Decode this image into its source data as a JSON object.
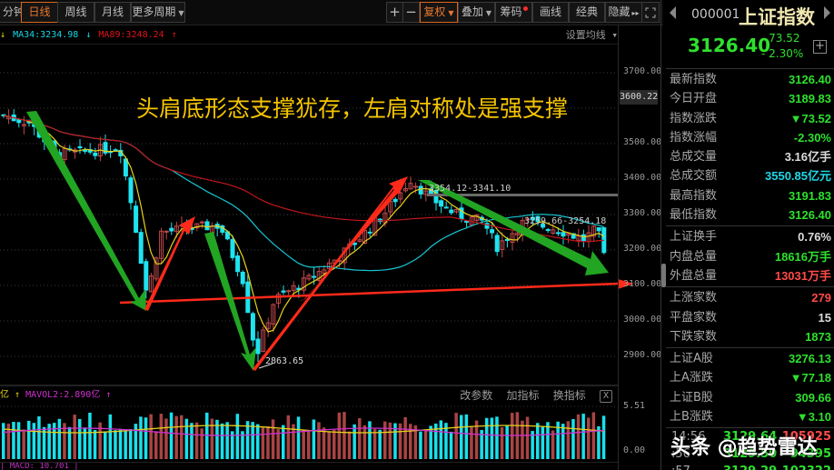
{
  "toolbar": {
    "period_tabs": [
      {
        "label": "分钟",
        "active": false
      },
      {
        "label": "日线",
        "active": true
      },
      {
        "label": "周线",
        "active": false
      },
      {
        "label": "月线",
        "active": false
      },
      {
        "label": "更多周期",
        "active": false,
        "dropdown": true
      }
    ],
    "zoom_in": "+",
    "zoom_out": "−",
    "tools": [
      {
        "label": "复权",
        "active": true,
        "dropdown": true
      },
      {
        "label": "叠加",
        "active": false,
        "dropdown": true
      },
      {
        "label": "筹码",
        "active": false,
        "badge": "red-dot"
      },
      {
        "label": "画线",
        "active": false
      },
      {
        "label": "经典",
        "active": false
      },
      {
        "label": "隐藏",
        "active": false,
        "suffix": "▸▸"
      }
    ],
    "fullscreen_icon": "expand-icon"
  },
  "ma_legend": {
    "ma5_arrow": "↓",
    "ma34_label": "MA34:3234.98",
    "ma34_arrow": "↓",
    "ma89_label": "MA89:3248.24",
    "ma89_arrow": "↑",
    "set_ma_label": "设置均线 ▾"
  },
  "main_chart": {
    "annotation": "头肩底形态支撑犹存，左肩对称处是强支撑",
    "current_price_tag": "3600.22",
    "y_axis": [
      "3700.00",
      "3600.00",
      "3500.00",
      "3400.00",
      "3300.00",
      "3200.00",
      "3100.00",
      "3000.00",
      "2900.00"
    ],
    "low_label": "2863.65",
    "range_label_1": "3354.12-3341.10",
    "range_label_2": "3259.66-3254.18",
    "colors": {
      "up": "#c0474a",
      "down": "#1fe3ef",
      "ma5": "#e8d21a",
      "ma34": "#17c6d3",
      "ma89": "#c1161c",
      "arrow_green": "#1faa1f",
      "arrow_red": "#ff2a1a"
    }
  },
  "volume_panel": {
    "legend_prefix": "亿 ↑",
    "mavol2_label": "MAVOL2:2.890亿",
    "mavol2_arrow": "↑",
    "tools": [
      "改参数",
      "加指标",
      "换指标"
    ],
    "close_label": "X",
    "y_axis": [
      "5.51",
      "0.00"
    ]
  },
  "macd_label": "| MACD: 10.701 |",
  "right_panel": {
    "code": "000001",
    "name": "上证指数",
    "price": "3126.40",
    "change": "- 73.52",
    "change_pct": "- 2.30%",
    "sections": [
      [
        {
          "label": "最新指数",
          "value": "3126.40",
          "color": "g"
        },
        {
          "label": "今日开盘",
          "value": "3189.83",
          "color": "g"
        },
        {
          "label": "指数涨跌",
          "value": "▼73.52",
          "color": "g"
        },
        {
          "label": "指数涨幅",
          "value": "-2.30%",
          "color": "g"
        },
        {
          "label": "总成交量",
          "value": "3.16亿手",
          "color": "w"
        },
        {
          "label": "总成交额",
          "value": "3550.85亿元",
          "color": "c"
        },
        {
          "label": "最高指数",
          "value": "3191.83",
          "color": "g"
        },
        {
          "label": "最低指数",
          "value": "3126.40",
          "color": "g"
        }
      ],
      [
        {
          "label": "上证换手",
          "value": "0.76%",
          "color": "w"
        },
        {
          "label": "内盘总量",
          "value": "18616万手",
          "color": "g"
        },
        {
          "label": "外盘总量",
          "value": "13031万手",
          "color": "r"
        }
      ],
      [
        {
          "label": "上涨家数",
          "value": "279",
          "color": "r"
        },
        {
          "label": "平盘家数",
          "value": "15",
          "color": "w"
        },
        {
          "label": "下跌家数",
          "value": "1873",
          "color": "g"
        }
      ],
      [
        {
          "label": "上证A股",
          "value": "3276.13",
          "color": "g"
        },
        {
          "label": "上A涨跌",
          "value": "▼77.18",
          "color": "g"
        },
        {
          "label": "上证B股",
          "value": "309.66",
          "color": "g"
        },
        {
          "label": "上B涨跌",
          "value": "▼3.10",
          "color": "g"
        }
      ]
    ],
    "ticks": [
      {
        "time": "14:56",
        "price": "3129.64",
        "vol": "105925",
        "vol_color": "r"
      },
      {
        "time": ":56",
        "price": "3129.50",
        "vol": "94395",
        "vol_color": "g"
      },
      {
        "time": ":57",
        "price": "3129.29",
        "vol": "102322",
        "vol_color": "g"
      }
    ]
  },
  "watermark": "头条 @趋势雷达",
  "chart_data": {
    "type": "candlestick",
    "title": "上证指数 日线",
    "ylabel": "",
    "ylim": [
      2850,
      3720
    ],
    "y_ticks": [
      2900,
      3000,
      3100,
      3200,
      3300,
      3400,
      3500,
      3600,
      3700
    ],
    "annotations": [
      "头肩底形态支撑犹存，左肩对称处是强支撑",
      "2863.65 (low)",
      "3354.12-3341.10",
      "3259.66-3254.18"
    ],
    "indicators": {
      "MA34": 3234.98,
      "MA89": 3248.24,
      "MAVOL2": "2.890亿"
    },
    "key_points": [
      {
        "label": "start",
        "value": 3580
      },
      {
        "label": "left shoulder low",
        "value": 3020
      },
      {
        "label": "rebound high",
        "value": 3290
      },
      {
        "label": "head low",
        "value": 2863.65
      },
      {
        "label": "right-side high",
        "value": 3420
      },
      {
        "label": "latest close",
        "value": 3126.4
      }
    ],
    "neckline_support": 3100,
    "volume_ylim": [
      0,
      5.51
    ]
  }
}
